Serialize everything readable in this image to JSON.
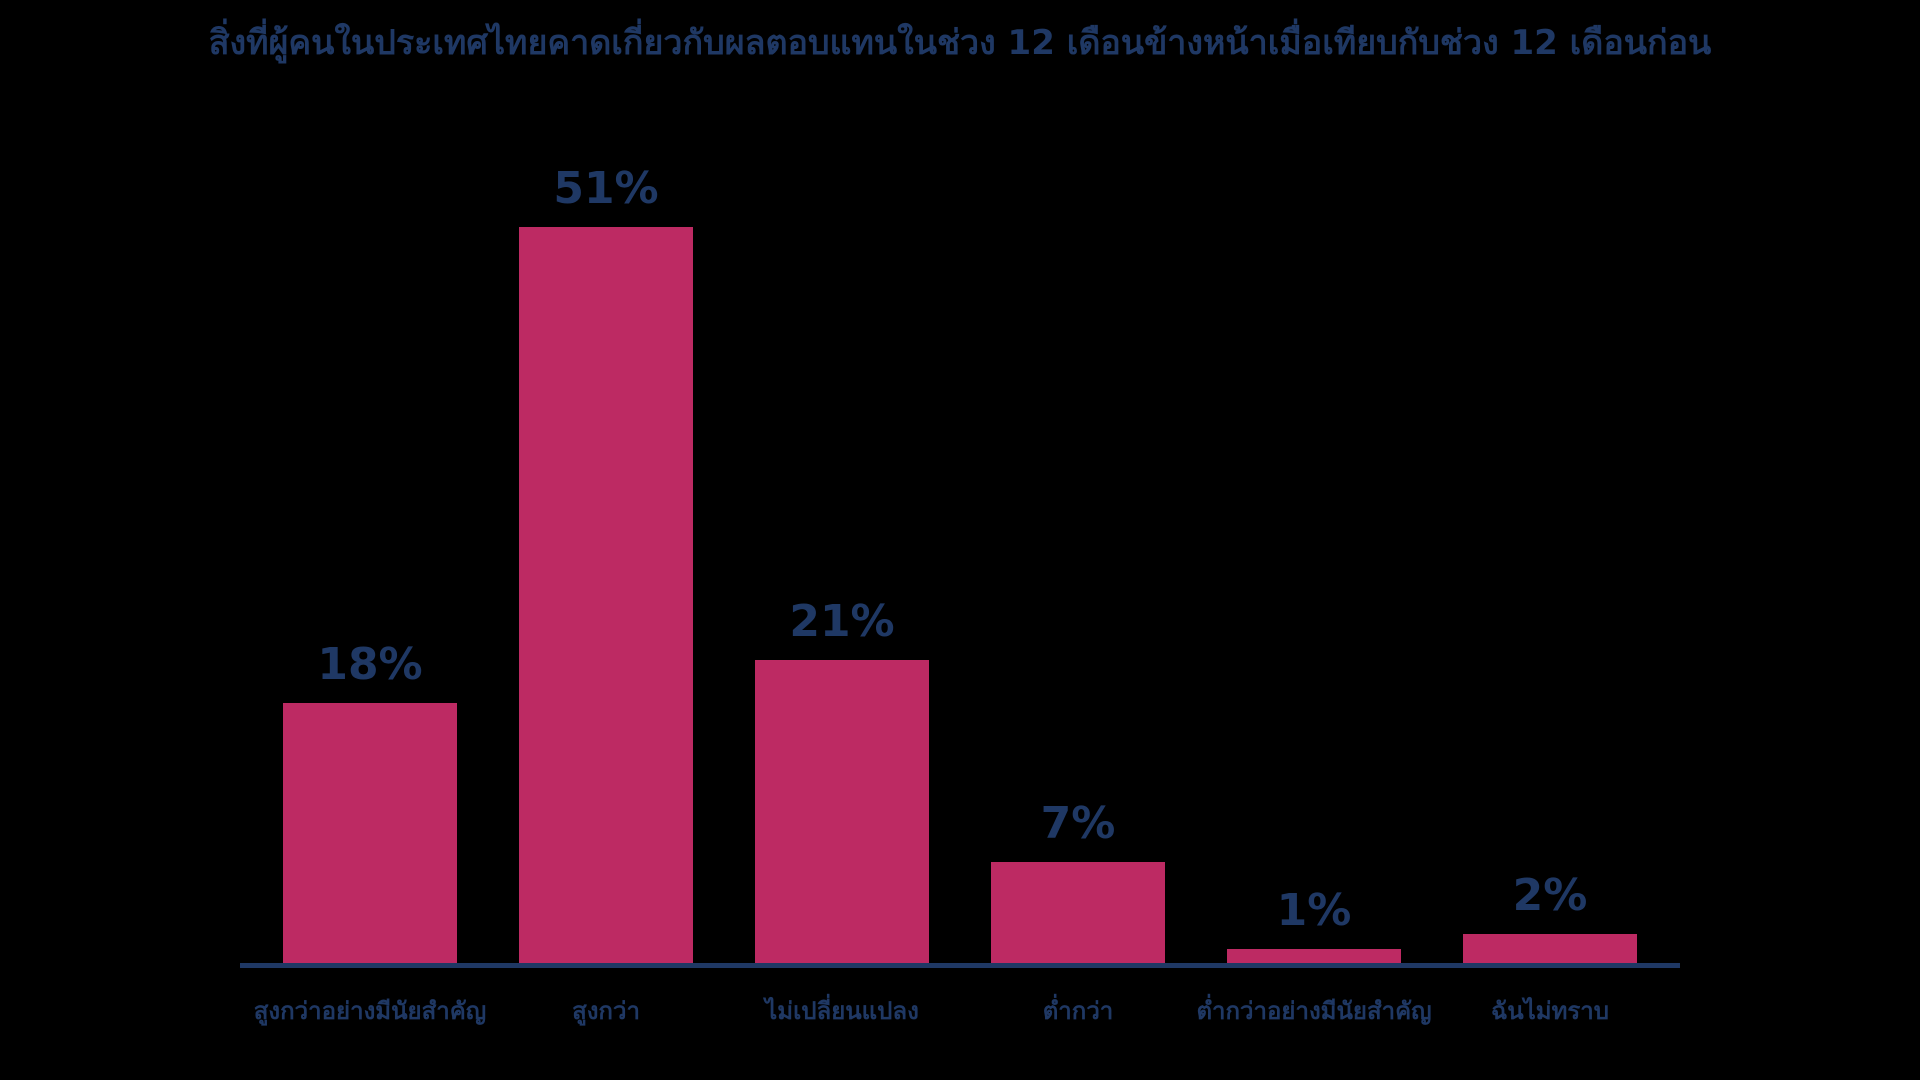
{
  "title": "สิ่งที่ผู้คนในประเทศไทยคาดเกี่ยวกับผลตอบแทนในช่วง 12 เดือนข้างหน้าเมื่อเทียบกับช่วง 12 เดือนก่อน",
  "colors": {
    "background": "#000000",
    "bar": "#BD2A63",
    "text": "#1F3864",
    "axis": "#1F3864"
  },
  "chart_data": {
    "type": "bar",
    "title": "สิ่งที่ผู้คนในประเทศไทยคาดเกี่ยวกับผลตอบแทนในช่วง 12 เดือนข้างหน้าเมื่อเทียบกับช่วง 12 เดือนก่อน",
    "categories": [
      "สูงกว่าอย่างมีนัยสำคัญ",
      "สูงกว่า",
      "ไม่เปลี่ยนแปลง",
      "ต่ำกว่า",
      "ต่ำกว่าอย่างมีนัยสำคัญ",
      "ฉันไม่ทราบ"
    ],
    "values": [
      18,
      51,
      21,
      7,
      1,
      2
    ],
    "value_labels": [
      "18%",
      "51%",
      "21%",
      "7%",
      "1%",
      "2%"
    ],
    "xlabel": "",
    "ylabel": "",
    "ylim": [
      0,
      55
    ],
    "grid": false,
    "legend": null,
    "data_labels_position": "above-bar",
    "bar_color": "#BD2A63"
  }
}
